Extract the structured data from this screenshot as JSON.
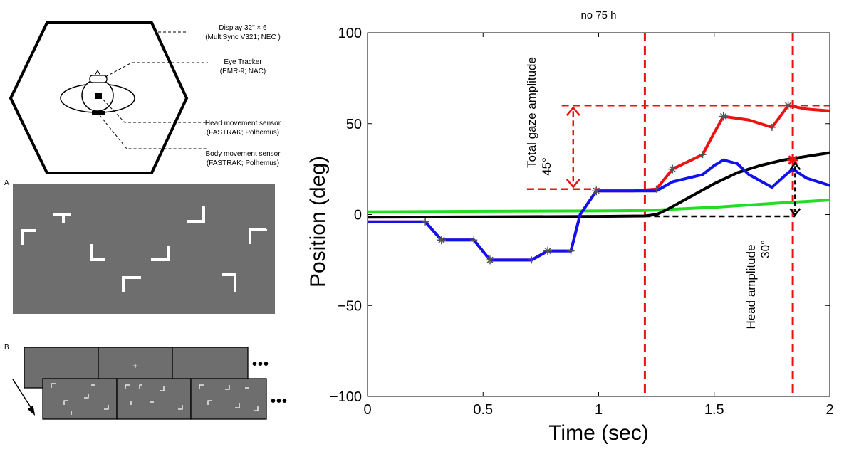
{
  "figure": {
    "setup": {
      "display_label": "Display 32\" × 6",
      "display_model": "(MultiSync V321; NEC )",
      "eye_tracker_label": "Eye Tracker",
      "eye_tracker_model": "(EMR-9; NAC)",
      "head_sensor_label": "Head movement sensor",
      "head_sensor_model": "(FASTRAK; Polhemus)",
      "body_sensor_label": "Body movement sensor",
      "body_sensor_model": "(FASTRAK; Polhemus)"
    },
    "panel_a": {
      "letter": "A"
    },
    "panel_b": {
      "letter": "B",
      "ellipsis": "•••",
      "fixation": "+"
    }
  },
  "chart_data": {
    "type": "line",
    "title": "no 75 h",
    "xlabel": "Time (sec)",
    "ylabel": "Position (deg)",
    "xlim": [
      0,
      2
    ],
    "ylim": [
      -100,
      100
    ],
    "xticks": [
      0,
      0.5,
      1,
      1.5,
      2
    ],
    "xtick_labels": [
      "0",
      "0.5",
      "1",
      "1.5",
      "2"
    ],
    "yticks": [
      -100,
      -50,
      0,
      50,
      100
    ],
    "ytick_labels": [
      "−100",
      "−50",
      "0",
      "50",
      "100"
    ],
    "grid": false,
    "series": [
      {
        "name": "green",
        "color": "#22dd22",
        "x": [
          0,
          0.5,
          1.0,
          1.2,
          1.5,
          1.8,
          2.0
        ],
        "y": [
          1.5,
          1.8,
          2.0,
          2.2,
          4.0,
          6.5,
          8.0
        ]
      },
      {
        "name": "black",
        "color": "#000000",
        "x": [
          0,
          0.5,
          1.0,
          1.2,
          1.25,
          1.3,
          1.4,
          1.5,
          1.6,
          1.7,
          1.8,
          1.9,
          2.0
        ],
        "y": [
          -1.5,
          -1.3,
          -1.0,
          -0.8,
          0,
          3,
          10,
          17,
          23,
          27,
          30,
          32,
          34
        ]
      },
      {
        "name": "red",
        "color": "#ee1111",
        "x": [
          0,
          0.25,
          0.32,
          0.46,
          0.53,
          0.71,
          0.78,
          0.88,
          0.92,
          0.99,
          1.05,
          1.15,
          1.25,
          1.32,
          1.45,
          1.5,
          1.54,
          1.65,
          1.75,
          1.78,
          1.82,
          1.9,
          2.0
        ],
        "y": [
          -4,
          -4,
          -14,
          -14,
          -25,
          -25,
          -20,
          -20,
          0,
          13,
          13,
          13,
          14,
          25,
          33,
          45,
          54,
          52,
          48,
          53,
          60,
          58,
          57
        ]
      },
      {
        "name": "blue",
        "color": "#1111ee",
        "x": [
          0,
          0.25,
          0.32,
          0.46,
          0.53,
          0.71,
          0.78,
          0.88,
          0.92,
          0.99,
          1.05,
          1.15,
          1.25,
          1.32,
          1.45,
          1.5,
          1.54,
          1.6,
          1.65,
          1.75,
          1.82,
          1.84,
          1.9,
          2.0
        ],
        "y": [
          -4,
          -4,
          -14,
          -14,
          -25,
          -25,
          -20,
          -20,
          0,
          13,
          13,
          13,
          13,
          18,
          22,
          27,
          30,
          28,
          22,
          15,
          23,
          25,
          20,
          16
        ]
      }
    ],
    "markers": {
      "asterisk_x": [
        0.32,
        0.53,
        0.78,
        0.99,
        1.32,
        1.54,
        1.82
      ],
      "asterisk_y": [
        -14,
        -25,
        -20,
        13,
        25,
        54,
        60
      ],
      "plus_x": [
        0.25,
        0.46,
        0.71,
        0.88,
        1.25,
        1.45,
        1.75
      ],
      "plus_y": [
        -4,
        -14,
        -25,
        -20,
        14,
        33,
        48
      ],
      "red_star": {
        "x": 1.84,
        "y": 30
      }
    },
    "vertical_lines_x": [
      1.2,
      1.84
    ],
    "annotations": {
      "gaze_title": "Total gaze amplitude",
      "gaze_value": "45°",
      "gaze_from": 14,
      "gaze_to": 60,
      "head_title": "Head amplitude",
      "head_value": "30°",
      "head_from": -1,
      "head_to": 29
    }
  }
}
